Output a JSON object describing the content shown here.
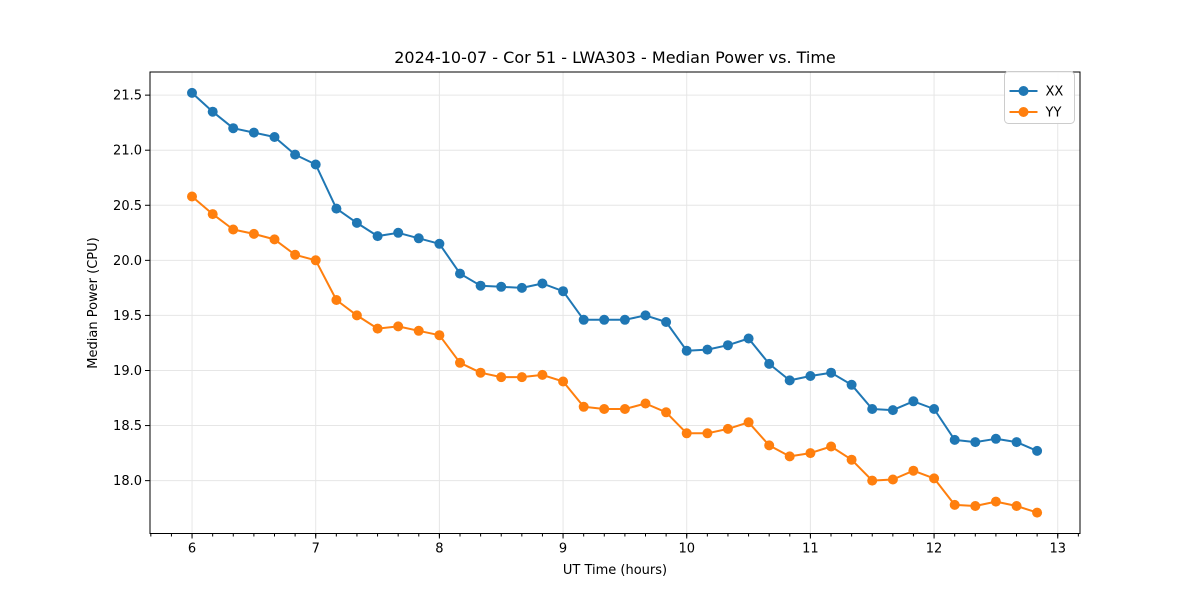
{
  "chart_data": {
    "type": "line",
    "title": "2024-10-07 - Cor 51 - LWA303 - Median Power vs. Time",
    "xlabel": "UT Time (hours)",
    "ylabel": "Median Power (CPU)",
    "xlim": [
      5.66,
      13.18
    ],
    "ylim": [
      17.52,
      21.71
    ],
    "x_ticks": [
      6,
      7,
      8,
      9,
      10,
      11,
      12,
      13
    ],
    "x_tick_labels": [
      "6",
      "7",
      "8",
      "9",
      "10",
      "11",
      "12",
      "13"
    ],
    "x_minor_tick_step": 0.166667,
    "y_ticks": [
      18.0,
      18.5,
      19.0,
      19.5,
      20.0,
      20.5,
      21.0,
      21.5
    ],
    "y_tick_labels": [
      "18.0",
      "18.5",
      "19.0",
      "19.5",
      "20.0",
      "20.5",
      "21.0",
      "21.5"
    ],
    "grid": true,
    "grid_color": "#e6e6e6",
    "legend_position": "upper right",
    "x": [
      6.0,
      6.167,
      6.333,
      6.5,
      6.667,
      6.833,
      7.0,
      7.167,
      7.333,
      7.5,
      7.667,
      7.833,
      8.0,
      8.167,
      8.333,
      8.5,
      8.667,
      8.833,
      9.0,
      9.167,
      9.333,
      9.5,
      9.667,
      9.833,
      10.0,
      10.167,
      10.333,
      10.5,
      10.667,
      10.833,
      11.0,
      11.167,
      11.333,
      11.5,
      11.667,
      11.833,
      12.0,
      12.167,
      12.333,
      12.5,
      12.667,
      12.833
    ],
    "series": [
      {
        "name": "XX",
        "color": "#1f77b4",
        "values": [
          21.52,
          21.35,
          21.2,
          21.16,
          21.12,
          20.96,
          20.87,
          20.47,
          20.34,
          20.22,
          20.25,
          20.2,
          20.15,
          19.88,
          19.77,
          19.76,
          19.75,
          19.79,
          19.72,
          19.46,
          19.46,
          19.46,
          19.5,
          19.44,
          19.18,
          19.19,
          19.23,
          19.29,
          19.06,
          18.91,
          18.95,
          18.98,
          18.87,
          18.65,
          18.64,
          18.72,
          18.65,
          18.37,
          18.35,
          18.38,
          18.35,
          18.27
        ]
      },
      {
        "name": "YY",
        "color": "#ff7f0e",
        "values": [
          20.58,
          20.42,
          20.28,
          20.24,
          20.19,
          20.05,
          20.0,
          19.64,
          19.5,
          19.38,
          19.4,
          19.36,
          19.32,
          19.07,
          18.98,
          18.94,
          18.94,
          18.96,
          18.9,
          18.67,
          18.65,
          18.65,
          18.7,
          18.62,
          18.43,
          18.43,
          18.47,
          18.53,
          18.32,
          18.22,
          18.25,
          18.31,
          18.19,
          18.0,
          18.01,
          18.09,
          18.02,
          17.78,
          17.77,
          17.81,
          17.77,
          17.71
        ]
      }
    ]
  },
  "style": {
    "axis_color": "#000000",
    "background": "#ffffff",
    "legend_border_color": "#cccccc"
  }
}
